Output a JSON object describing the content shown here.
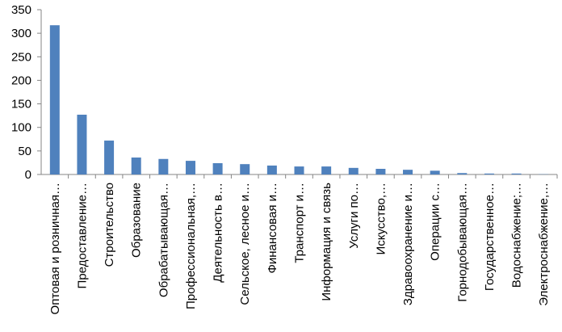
{
  "chart_data": {
    "type": "bar",
    "categories": [
      "Оптовая и розничная…",
      "Предоставление…",
      "Строительство",
      "Образование",
      "Обрабатывающая…",
      "Профессиональная,…",
      "Деятельность в…",
      "Сельское, лесное и…",
      "Финансовая и…",
      "Транспорт и…",
      "Информация и связь",
      "Услуги по…",
      "Искусство,…",
      "Здравоохранение и…",
      "Операции с…",
      "Горнодобывающая…",
      "Государственное…",
      "Водоснабжение;…",
      "Электроснабжение,…"
    ],
    "values": [
      317,
      127,
      72,
      36,
      33,
      29,
      24,
      22,
      19,
      17,
      17,
      14,
      12,
      10,
      8,
      3,
      2,
      2,
      0.5
    ],
    "color": "#4f81bd",
    "ylim": [
      0,
      350
    ],
    "yticks": [
      0,
      50,
      100,
      150,
      200,
      250,
      300,
      350
    ],
    "grid": false
  }
}
